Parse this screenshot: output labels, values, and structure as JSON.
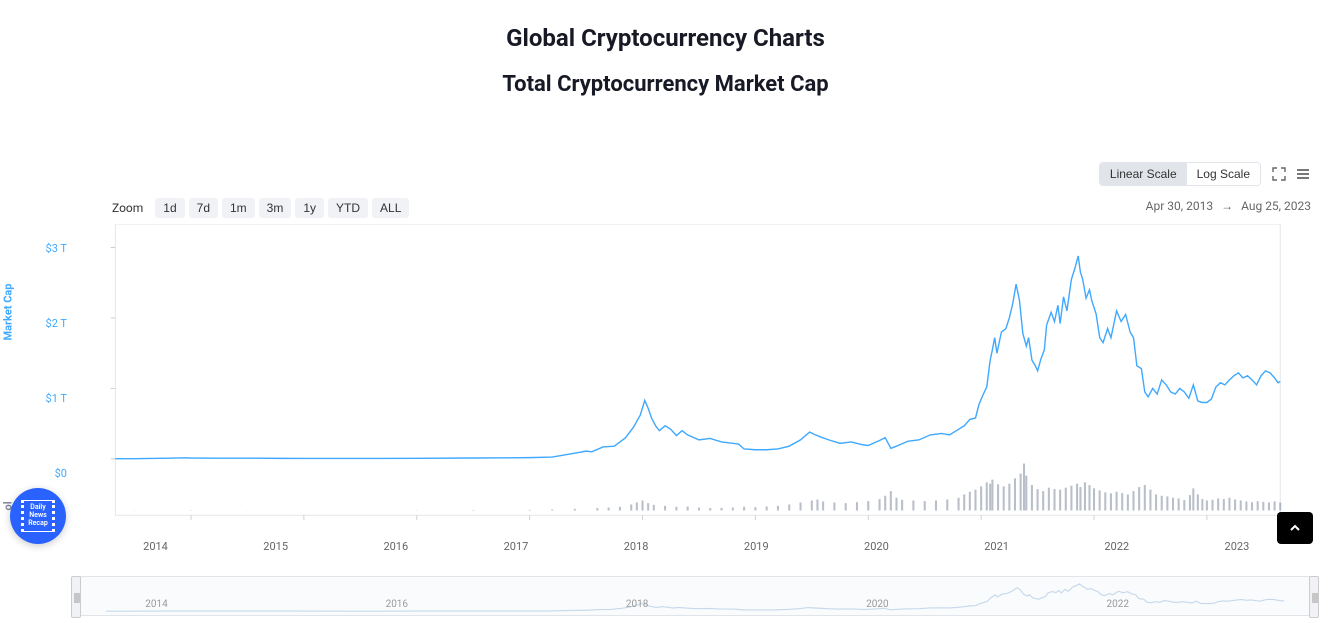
{
  "title": "Global Cryptocurrency Charts",
  "subtitle": "Total Cryptocurrency Market Cap",
  "scale": {
    "linear": "Linear Scale",
    "log": "Log Scale",
    "active": "linear"
  },
  "zoom": {
    "label": "Zoom",
    "options": [
      "1d",
      "7d",
      "1m",
      "3m",
      "1y",
      "YTD",
      "ALL"
    ]
  },
  "date_range": {
    "start": "Apr 30, 2013",
    "arrow": "→",
    "end": "Aug 25, 2023"
  },
  "chart": {
    "type": "line+bar",
    "x_start_year": 2013.33,
    "x_end_year": 2023.65,
    "x_ticks": [
      "2014",
      "2015",
      "2016",
      "2017",
      "2018",
      "2019",
      "2020",
      "2021",
      "2022",
      "2023"
    ],
    "x_tick_years": [
      2014,
      2015,
      2016,
      2017,
      2018,
      2019,
      2020,
      2021,
      2022,
      2023
    ],
    "y_max": 3.2,
    "y_ticks": [
      {
        "v": 0,
        "label": "$0"
      },
      {
        "v": 1,
        "label": "$1 T"
      },
      {
        "v": 2,
        "label": "$2 T"
      },
      {
        "v": 3,
        "label": "$3 T"
      }
    ],
    "y_axis_label": "Market Cap",
    "vol_label": "ol",
    "line_color": "#40a9ff",
    "line_width": 1.5,
    "vol_color": "#808a9d",
    "background_color": "#ffffff",
    "border_color": "#e1e5ea",
    "market_cap": [
      [
        2013.33,
        0.002
      ],
      [
        2013.5,
        0.002
      ],
      [
        2013.8,
        0.01
      ],
      [
        2013.95,
        0.015
      ],
      [
        2014.0,
        0.012
      ],
      [
        2014.2,
        0.01
      ],
      [
        2014.5,
        0.009
      ],
      [
        2014.8,
        0.007
      ],
      [
        2015.0,
        0.006
      ],
      [
        2015.5,
        0.005
      ],
      [
        2016.0,
        0.008
      ],
      [
        2016.5,
        0.012
      ],
      [
        2016.8,
        0.014
      ],
      [
        2017.0,
        0.018
      ],
      [
        2017.2,
        0.025
      ],
      [
        2017.4,
        0.08
      ],
      [
        2017.5,
        0.11
      ],
      [
        2017.55,
        0.1
      ],
      [
        2017.65,
        0.17
      ],
      [
        2017.75,
        0.18
      ],
      [
        2017.85,
        0.3
      ],
      [
        2017.92,
        0.45
      ],
      [
        2017.98,
        0.62
      ],
      [
        2018.02,
        0.83
      ],
      [
        2018.05,
        0.72
      ],
      [
        2018.08,
        0.58
      ],
      [
        2018.12,
        0.46
      ],
      [
        2018.15,
        0.4
      ],
      [
        2018.2,
        0.47
      ],
      [
        2018.25,
        0.42
      ],
      [
        2018.3,
        0.33
      ],
      [
        2018.35,
        0.4
      ],
      [
        2018.4,
        0.34
      ],
      [
        2018.5,
        0.27
      ],
      [
        2018.6,
        0.29
      ],
      [
        2018.7,
        0.24
      ],
      [
        2018.8,
        0.22
      ],
      [
        2018.85,
        0.21
      ],
      [
        2018.9,
        0.14
      ],
      [
        2019.0,
        0.13
      ],
      [
        2019.1,
        0.13
      ],
      [
        2019.2,
        0.14
      ],
      [
        2019.3,
        0.18
      ],
      [
        2019.4,
        0.27
      ],
      [
        2019.48,
        0.38
      ],
      [
        2019.52,
        0.35
      ],
      [
        2019.58,
        0.31
      ],
      [
        2019.65,
        0.27
      ],
      [
        2019.75,
        0.22
      ],
      [
        2019.85,
        0.24
      ],
      [
        2019.95,
        0.2
      ],
      [
        2020.0,
        0.19
      ],
      [
        2020.1,
        0.26
      ],
      [
        2020.15,
        0.3
      ],
      [
        2020.2,
        0.15
      ],
      [
        2020.25,
        0.18
      ],
      [
        2020.35,
        0.25
      ],
      [
        2020.45,
        0.27
      ],
      [
        2020.55,
        0.34
      ],
      [
        2020.65,
        0.36
      ],
      [
        2020.72,
        0.34
      ],
      [
        2020.78,
        0.4
      ],
      [
        2020.85,
        0.47
      ],
      [
        2020.9,
        0.56
      ],
      [
        2020.95,
        0.58
      ],
      [
        2020.98,
        0.77
      ],
      [
        2021.02,
        0.92
      ],
      [
        2021.05,
        1.02
      ],
      [
        2021.08,
        1.4
      ],
      [
        2021.1,
        1.55
      ],
      [
        2021.12,
        1.72
      ],
      [
        2021.14,
        1.5
      ],
      [
        2021.18,
        1.8
      ],
      [
        2021.22,
        1.85
      ],
      [
        2021.25,
        2.0
      ],
      [
        2021.28,
        2.2
      ],
      [
        2021.31,
        2.48
      ],
      [
        2021.34,
        2.25
      ],
      [
        2021.37,
        1.78
      ],
      [
        2021.4,
        1.6
      ],
      [
        2021.42,
        1.72
      ],
      [
        2021.45,
        1.4
      ],
      [
        2021.48,
        1.32
      ],
      [
        2021.5,
        1.25
      ],
      [
        2021.53,
        1.42
      ],
      [
        2021.56,
        1.55
      ],
      [
        2021.58,
        1.9
      ],
      [
        2021.62,
        2.08
      ],
      [
        2021.65,
        1.95
      ],
      [
        2021.68,
        2.18
      ],
      [
        2021.7,
        1.92
      ],
      [
        2021.73,
        2.3
      ],
      [
        2021.76,
        2.1
      ],
      [
        2021.8,
        2.55
      ],
      [
        2021.83,
        2.7
      ],
      [
        2021.86,
        2.88
      ],
      [
        2021.88,
        2.65
      ],
      [
        2021.9,
        2.55
      ],
      [
        2021.93,
        2.28
      ],
      [
        2021.96,
        2.4
      ],
      [
        2021.98,
        2.25
      ],
      [
        2022.02,
        2.05
      ],
      [
        2022.05,
        1.72
      ],
      [
        2022.08,
        1.65
      ],
      [
        2022.12,
        1.85
      ],
      [
        2022.15,
        1.72
      ],
      [
        2022.2,
        2.1
      ],
      [
        2022.24,
        1.95
      ],
      [
        2022.28,
        2.05
      ],
      [
        2022.32,
        1.8
      ],
      [
        2022.35,
        1.72
      ],
      [
        2022.38,
        1.32
      ],
      [
        2022.42,
        1.28
      ],
      [
        2022.45,
        0.95
      ],
      [
        2022.48,
        0.88
      ],
      [
        2022.52,
        1.0
      ],
      [
        2022.56,
        0.92
      ],
      [
        2022.6,
        1.12
      ],
      [
        2022.64,
        1.05
      ],
      [
        2022.68,
        0.95
      ],
      [
        2022.72,
        0.92
      ],
      [
        2022.76,
        1.0
      ],
      [
        2022.8,
        0.95
      ],
      [
        2022.84,
        0.86
      ],
      [
        2022.88,
        1.05
      ],
      [
        2022.92,
        0.82
      ],
      [
        2022.96,
        0.8
      ],
      [
        2023.0,
        0.8
      ],
      [
        2023.04,
        0.85
      ],
      [
        2023.08,
        1.02
      ],
      [
        2023.12,
        1.08
      ],
      [
        2023.16,
        1.05
      ],
      [
        2023.2,
        1.12
      ],
      [
        2023.24,
        1.18
      ],
      [
        2023.28,
        1.22
      ],
      [
        2023.32,
        1.15
      ],
      [
        2023.36,
        1.18
      ],
      [
        2023.4,
        1.12
      ],
      [
        2023.44,
        1.05
      ],
      [
        2023.48,
        1.18
      ],
      [
        2023.52,
        1.25
      ],
      [
        2023.56,
        1.22
      ],
      [
        2023.6,
        1.15
      ],
      [
        2023.63,
        1.08
      ],
      [
        2023.65,
        1.1
      ]
    ],
    "volume_max": 350,
    "volume": [
      [
        2013.5,
        1
      ],
      [
        2014,
        2
      ],
      [
        2014.5,
        1
      ],
      [
        2015,
        1
      ],
      [
        2015.5,
        1
      ],
      [
        2016,
        2
      ],
      [
        2016.5,
        3
      ],
      [
        2017,
        5
      ],
      [
        2017.2,
        8
      ],
      [
        2017.4,
        12
      ],
      [
        2017.6,
        18
      ],
      [
        2017.7,
        22
      ],
      [
        2017.8,
        28
      ],
      [
        2017.9,
        45
      ],
      [
        2017.95,
        60
      ],
      [
        2018.0,
        75
      ],
      [
        2018.05,
        55
      ],
      [
        2018.1,
        42
      ],
      [
        2018.2,
        35
      ],
      [
        2018.3,
        28
      ],
      [
        2018.4,
        30
      ],
      [
        2018.5,
        22
      ],
      [
        2018.6,
        18
      ],
      [
        2018.7,
        20
      ],
      [
        2018.8,
        22
      ],
      [
        2018.9,
        28
      ],
      [
        2019.0,
        25
      ],
      [
        2019.1,
        30
      ],
      [
        2019.2,
        35
      ],
      [
        2019.3,
        45
      ],
      [
        2019.4,
        60
      ],
      [
        2019.5,
        75
      ],
      [
        2019.55,
        82
      ],
      [
        2019.6,
        68
      ],
      [
        2019.7,
        60
      ],
      [
        2019.8,
        55
      ],
      [
        2019.9,
        62
      ],
      [
        2020.0,
        70
      ],
      [
        2020.1,
        85
      ],
      [
        2020.15,
        110
      ],
      [
        2020.2,
        145
      ],
      [
        2020.25,
        95
      ],
      [
        2020.3,
        80
      ],
      [
        2020.4,
        75
      ],
      [
        2020.5,
        70
      ],
      [
        2020.6,
        75
      ],
      [
        2020.7,
        82
      ],
      [
        2020.8,
        95
      ],
      [
        2020.85,
        120
      ],
      [
        2020.9,
        140
      ],
      [
        2020.95,
        155
      ],
      [
        2021.0,
        180
      ],
      [
        2021.05,
        210
      ],
      [
        2021.08,
        200
      ],
      [
        2021.1,
        230
      ],
      [
        2021.15,
        195
      ],
      [
        2021.2,
        180
      ],
      [
        2021.25,
        200
      ],
      [
        2021.3,
        240
      ],
      [
        2021.35,
        275
      ],
      [
        2021.38,
        350
      ],
      [
        2021.4,
        260
      ],
      [
        2021.45,
        190
      ],
      [
        2021.5,
        160
      ],
      [
        2021.55,
        145
      ],
      [
        2021.6,
        170
      ],
      [
        2021.65,
        160
      ],
      [
        2021.7,
        155
      ],
      [
        2021.75,
        170
      ],
      [
        2021.8,
        185
      ],
      [
        2021.85,
        200
      ],
      [
        2021.88,
        175
      ],
      [
        2021.92,
        210
      ],
      [
        2021.96,
        190
      ],
      [
        2022.0,
        165
      ],
      [
        2022.05,
        150
      ],
      [
        2022.1,
        135
      ],
      [
        2022.15,
        128
      ],
      [
        2022.2,
        140
      ],
      [
        2022.25,
        130
      ],
      [
        2022.3,
        120
      ],
      [
        2022.35,
        145
      ],
      [
        2022.4,
        175
      ],
      [
        2022.45,
        190
      ],
      [
        2022.5,
        155
      ],
      [
        2022.55,
        120
      ],
      [
        2022.6,
        110
      ],
      [
        2022.65,
        105
      ],
      [
        2022.7,
        95
      ],
      [
        2022.75,
        90
      ],
      [
        2022.8,
        78
      ],
      [
        2022.85,
        115
      ],
      [
        2022.88,
        165
      ],
      [
        2022.92,
        120
      ],
      [
        2022.96,
        85
      ],
      [
        2023.0,
        75
      ],
      [
        2023.05,
        80
      ],
      [
        2023.1,
        90
      ],
      [
        2023.15,
        85
      ],
      [
        2023.2,
        95
      ],
      [
        2023.25,
        82
      ],
      [
        2023.3,
        75
      ],
      [
        2023.35,
        68
      ],
      [
        2023.4,
        62
      ],
      [
        2023.45,
        70
      ],
      [
        2023.5,
        65
      ],
      [
        2023.55,
        60
      ],
      [
        2023.6,
        68
      ],
      [
        2023.65,
        60
      ]
    ]
  },
  "navigator": {
    "x_ticks": [
      "2014",
      "2016",
      "2018",
      "2020",
      "2022"
    ],
    "x_tick_years": [
      2014,
      2016,
      2018,
      2020,
      2022
    ],
    "line_color": "#c6d9ec"
  },
  "badge_text": "Daily\nNews\nRecap"
}
